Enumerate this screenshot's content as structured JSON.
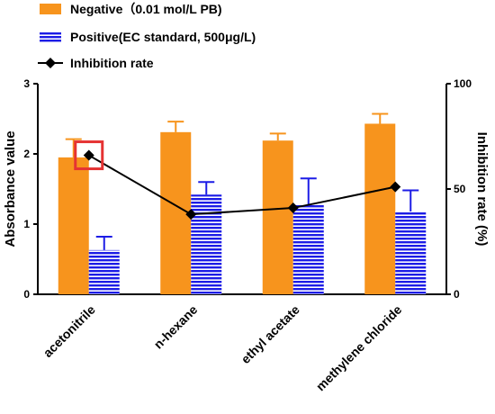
{
  "chart_data": {
    "type": "bar",
    "categories": [
      "acetonitrile",
      "n-hexane",
      "ethyl acetate",
      "methylene chloride"
    ],
    "series": [
      {
        "name": "Negative（0.01 mol/L PB)",
        "kind": "bar",
        "axis": "left",
        "color": "#F7941D",
        "pattern": "solid",
        "values": [
          1.95,
          2.31,
          2.19,
          2.43
        ],
        "error": [
          0.26,
          0.15,
          0.1,
          0.14
        ]
      },
      {
        "name": "Positive(EC standard, 500μg/L)",
        "kind": "bar",
        "axis": "left",
        "color": "#1C1CE6",
        "pattern": "horizontal-stripes",
        "values": [
          0.63,
          1.42,
          1.28,
          1.18
        ],
        "error": [
          0.19,
          0.18,
          0.37,
          0.3
        ]
      },
      {
        "name": "Inhibition rate",
        "kind": "line",
        "axis": "right",
        "color": "#000000",
        "marker": "diamond",
        "values": [
          66,
          38,
          41,
          51
        ]
      }
    ],
    "ylabel": "Absorbance value",
    "ylabel_right": "Inhibition rate (%)",
    "ylim": [
      0,
      3
    ],
    "ylim_right": [
      0,
      100
    ],
    "yticks": [
      "0",
      "1",
      "2",
      "3"
    ],
    "yticks_right": [
      "0",
      "50",
      "100"
    ],
    "highlight": {
      "category_index": 0,
      "series": "Inhibition rate",
      "style": "red box"
    },
    "grid": false,
    "legend_position": "top-left"
  }
}
